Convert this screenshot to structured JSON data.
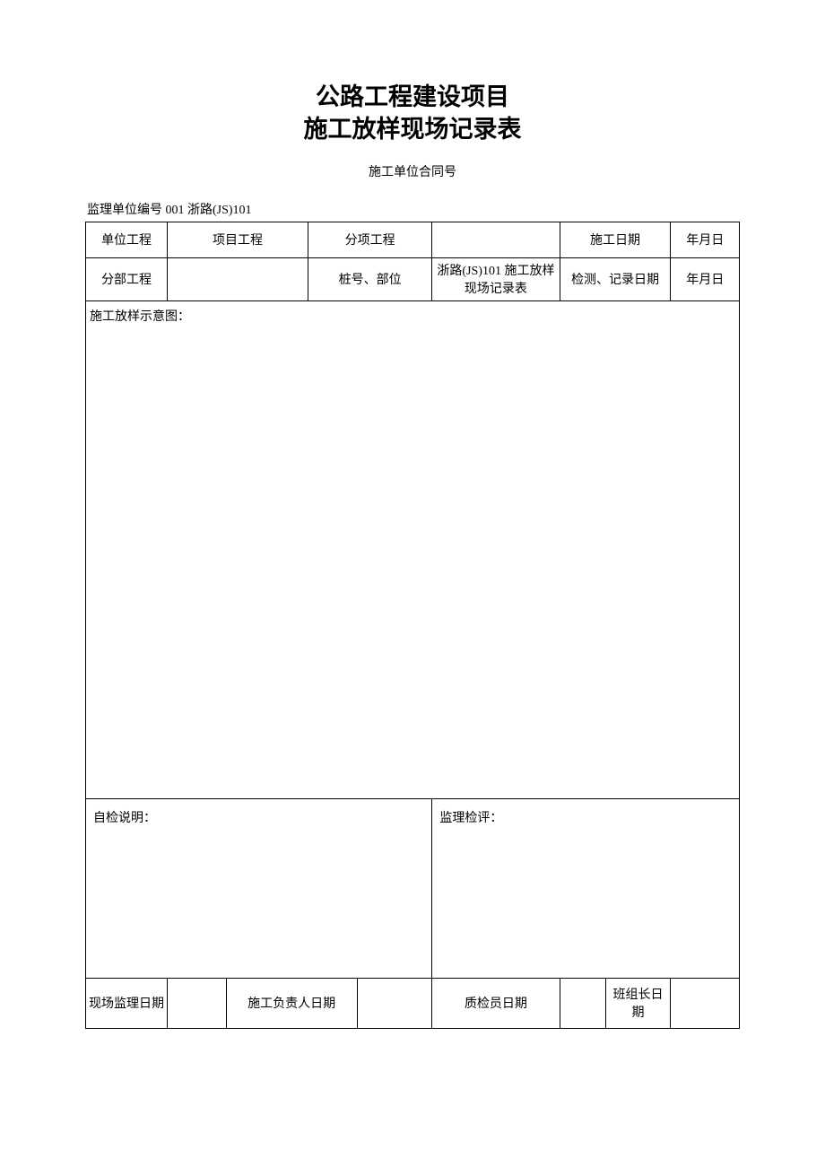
{
  "title": {
    "line1": "公路工程建设项目",
    "line2": "施工放样现场记录表"
  },
  "subtitle": "施工单位合同号",
  "header_line": "监理单位编号 001 浙路(JS)101",
  "table": {
    "row1": {
      "c1": "单位工程",
      "c2": "项目工程",
      "c3": "分项工程",
      "c4": "",
      "c5": "施工日期",
      "c6": "年月日"
    },
    "row2": {
      "c1": "分部工程",
      "c2": "",
      "c3": "桩号、部位",
      "c4": "浙路(JS)101 施工放样现场记录表",
      "c5": "检测、记录日期",
      "c6": "年月日"
    },
    "diagram_label": "施工放样示意图：",
    "comments": {
      "self": "自检说明：",
      "supervisor": "监理检评："
    },
    "sig": {
      "c1": "现场监理日期",
      "c2": "",
      "c3": "施工负责人日期",
      "c4": "",
      "c5": "质检员日期",
      "c6": "",
      "c7": "班组长日期",
      "c8": ""
    }
  },
  "style": {
    "border_color": "#000000",
    "background": "#ffffff",
    "title_fontsize": 27,
    "body_fontsize": 14
  }
}
